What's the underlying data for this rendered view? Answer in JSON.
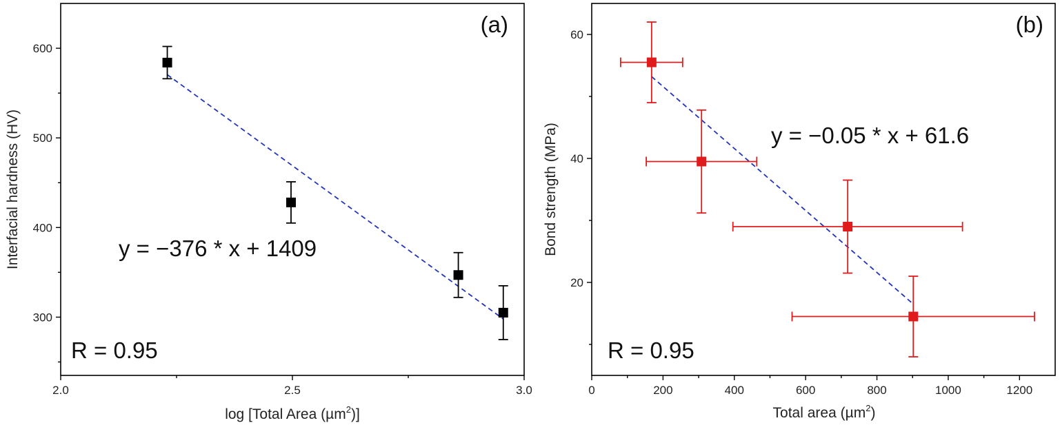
{
  "chart_data": [
    {
      "type": "scatter",
      "panel_label": "(a)",
      "xlabel": "log [Total Area (µm",
      "xlabel_sup": "2",
      "xlabel_tail": ")]",
      "ylabel": "Interfacial hardness (HV)",
      "xlim": [
        2.0,
        3.0
      ],
      "ylim": [
        235,
        650
      ],
      "xticks": [
        2.0,
        2.5,
        3.0
      ],
      "xtick_labels": [
        "2.0",
        "2.5",
        "3.0"
      ],
      "yticks": [
        300,
        400,
        500,
        600
      ],
      "ytick_labels": [
        "300",
        "400",
        "500",
        "600"
      ],
      "series": [
        {
          "name": "data",
          "color": "#000000",
          "points": [
            {
              "x": 2.23,
              "y": 584,
              "yerr": 18
            },
            {
              "x": 2.497,
              "y": 428,
              "yerr": 23
            },
            {
              "x": 2.858,
              "y": 347,
              "yerr": 25
            },
            {
              "x": 2.955,
              "y": 305,
              "yerr": 30
            }
          ]
        }
      ],
      "fit": {
        "slope": -376,
        "intercept": 1409,
        "x_range": [
          2.23,
          2.955
        ],
        "color": "#2233bb"
      },
      "equation": "y = −376 * x + 1409",
      "r_text": "R = 0.95"
    },
    {
      "type": "scatter",
      "panel_label": "(b)",
      "xlabel": "Total area (µm",
      "xlabel_sup": "2",
      "xlabel_tail": ")",
      "ylabel": "Bond strength (MPa)",
      "xlim": [
        0,
        1300
      ],
      "ylim": [
        5,
        65
      ],
      "xticks": [
        0,
        200,
        400,
        600,
        800,
        1000,
        1200
      ],
      "xtick_labels": [
        "0",
        "200",
        "400",
        "600",
        "800",
        "1000",
        "1200"
      ],
      "yticks": [
        20,
        40,
        60
      ],
      "ytick_labels": [
        "20",
        "40",
        "60"
      ],
      "series": [
        {
          "name": "data",
          "color": "#e01b1b",
          "points": [
            {
              "x": 168,
              "y": 55.5,
              "xerr": 87,
              "yerr": 6.5
            },
            {
              "x": 308,
              "y": 39.5,
              "xerr": 155,
              "yerr": 8.3
            },
            {
              "x": 718,
              "y": 29.0,
              "xerr": 322,
              "yerr": 7.5
            },
            {
              "x": 902,
              "y": 14.5,
              "xerr": 340,
              "yerr": 6.5
            }
          ]
        }
      ],
      "fit": {
        "slope": -0.05,
        "intercept": 61.6,
        "x_range": [
          168,
          902
        ],
        "color": "#2233bb"
      },
      "equation": "y = −0.05 * x + 61.6",
      "r_text": "R = 0.95"
    }
  ]
}
